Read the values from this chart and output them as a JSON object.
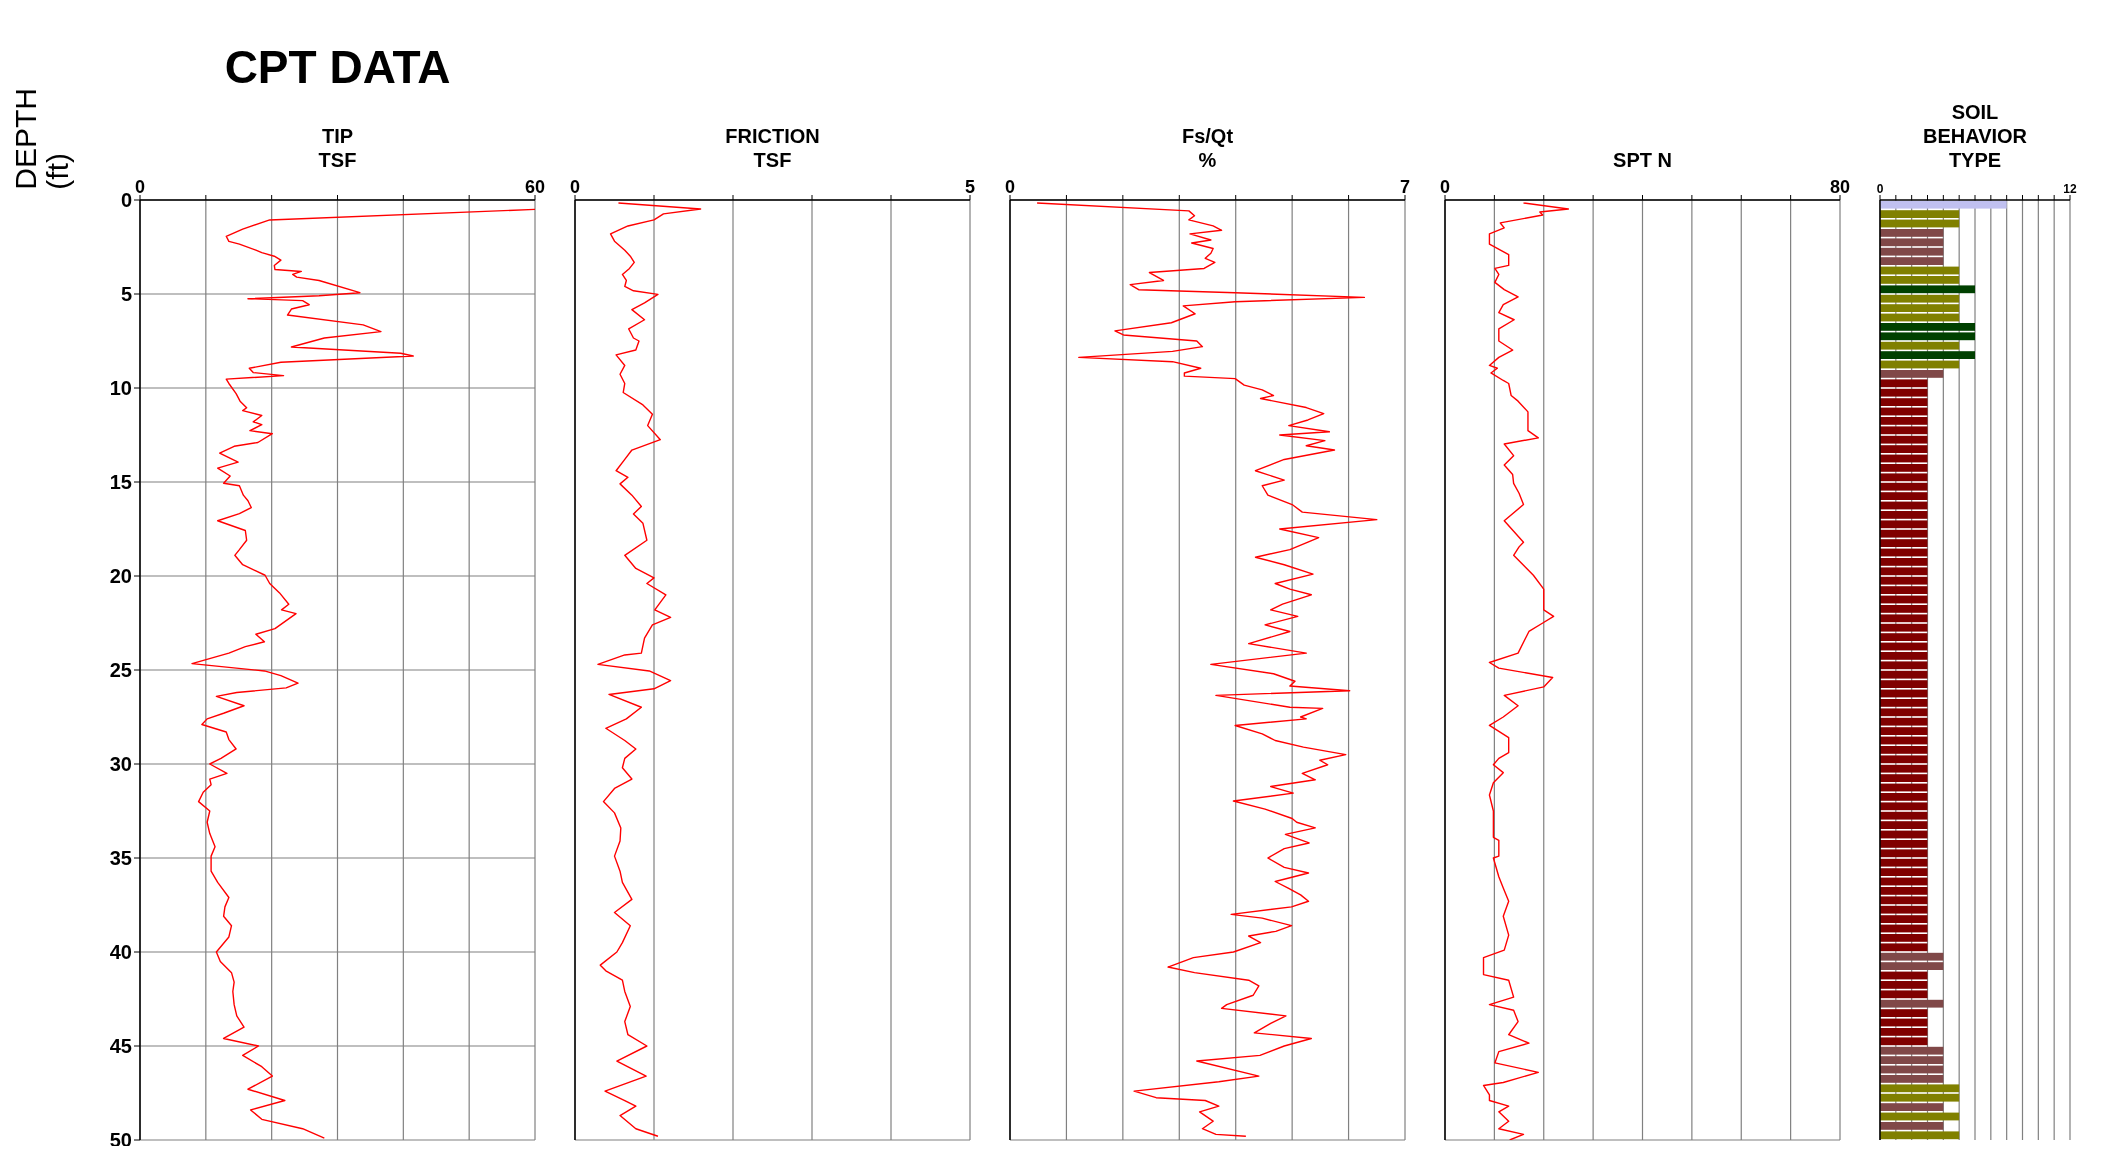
{
  "chart_data": [
    {
      "type": "line",
      "title": "CPT DATA",
      "xlabel": "TIP\nTSF",
      "ylabel": "DEPTH\n(ft)",
      "color": "#ff0000",
      "grid": true,
      "xlim": [
        0,
        60
      ],
      "xticks": [
        0,
        {
          "value": 10,
          "label": null
        },
        {
          "value": 20,
          "label": null
        },
        {
          "value": 30,
          "label": null
        },
        {
          "value": 40,
          "label": null
        },
        {
          "value": 50,
          "label": null
        },
        60
      ],
      "ylim": [
        50,
        0
      ],
      "yticks": [
        0,
        5,
        10,
        15,
        20,
        25,
        30,
        35,
        40,
        45,
        50
      ],
      "x": [
        60,
        19.7,
        15.6,
        13.1,
        13.5,
        15.1,
        17.6,
        18.5,
        20.4,
        21.4,
        20.4,
        20.5,
        24.5,
        23.2,
        23.8,
        27.2,
        33.4,
        27.2,
        16.4,
        24.7,
        25.7,
        23.0,
        22.4,
        33.9,
        36.6,
        28.0,
        23.0,
        39.6,
        41.5,
        21.4,
        16.6,
        17.2,
        21.8,
        13.1,
        13.5,
        14.6,
        15.2,
        16.2,
        15.6,
        18.5,
        17.2,
        18.5,
        16.7,
        20.1,
        17.9,
        14.3,
        12.1,
        14.9,
        11.8,
        13.7,
        12.7,
        15.1,
        15.7,
        16.4,
        16.9,
        15.1,
        11.8,
        16.0,
        16.2,
        15.1,
        14.4,
        15.6,
        19.0,
        19.7,
        21.2,
        22.6,
        21.5,
        23.7,
        20.5,
        17.6,
        18.9,
        16.0,
        13.5,
        7.9,
        18.9,
        21.4,
        24.0,
        22.2,
        14.7,
        11.6,
        15.8,
        12.7,
        10.2,
        9.4,
        13.1,
        13.5,
        14.6,
        12.3,
        10.6,
        13.2,
        10.6,
        10.8,
        9.6,
        8.9,
        10.6,
        10.2,
        10.6,
        11.4,
        10.8,
        10.8,
        11.8,
        13.5,
        12.9,
        12.7,
        13.9,
        13.5,
        11.6,
        12.2,
        13.9,
        14.3,
        14.1,
        14.3,
        14.7,
        15.8,
        12.7,
        18.0,
        15.6,
        18.5,
        20.1,
        16.4,
        22.0,
        16.8,
        18.5,
        24.7,
        28.0
      ],
      "values": [
        0.5,
        1.06,
        1.55,
        1.93,
        2.2,
        2.35,
        2.67,
        2.8,
        2.99,
        3.2,
        3.48,
        3.7,
        3.8,
        3.96,
        4.1,
        4.28,
        4.93,
        5.09,
        5.25,
        5.35,
        5.57,
        5.8,
        6.12,
        6.64,
        7.0,
        7.34,
        7.82,
        8.15,
        8.3,
        8.63,
        8.95,
        9.18,
        9.34,
        9.53,
        9.76,
        10.3,
        10.7,
        11.05,
        11.2,
        11.46,
        11.8,
        11.95,
        12.27,
        12.43,
        12.9,
        13.1,
        13.46,
        13.94,
        14.26,
        14.68,
        15.07,
        15.2,
        15.7,
        16.0,
        16.36,
        16.68,
        17.06,
        17.58,
        18.1,
        18.6,
        18.9,
        19.4,
        19.96,
        20.4,
        20.9,
        21.5,
        21.8,
        22.0,
        22.8,
        23.1,
        23.5,
        23.76,
        24.1,
        24.66,
        25.05,
        25.3,
        25.7,
        25.95,
        26.2,
        26.4,
        26.9,
        27.3,
        27.6,
        27.9,
        28.3,
        28.7,
        29.2,
        29.7,
        30.0,
        30.5,
        30.8,
        31.1,
        31.5,
        32.0,
        32.5,
        33.1,
        33.7,
        34.4,
        34.9,
        35.7,
        36.3,
        37.1,
        37.6,
        38.1,
        38.6,
        39.2,
        40.0,
        40.5,
        41.1,
        41.6,
        42.1,
        42.8,
        43.4,
        44.0,
        44.6,
        45.0,
        45.5,
        46.1,
        46.6,
        47.3,
        47.9,
        48.4,
        48.9,
        49.4,
        49.9
      ]
    },
    {
      "type": "line",
      "xlabel": "FRICTION\nTSF",
      "color": "#ff0000",
      "grid": true,
      "tick_labels": "x",
      "xlim": [
        0,
        5
      ],
      "xticks": [
        0,
        {
          "value": 1,
          "label": null
        },
        {
          "value": 2,
          "label": null
        },
        {
          "value": 3,
          "label": null
        },
        {
          "value": 4,
          "label": null
        },
        5
      ],
      "ylim": [
        50,
        0
      ],
      "yticks": [
        0,
        5,
        10,
        15,
        20,
        25,
        30,
        35,
        40,
        45,
        50
      ],
      "x": [
        0.55,
        1.59,
        1.12,
        1.0,
        0.67,
        0.45,
        0.5,
        0.63,
        0.7,
        0.75,
        0.69,
        0.6,
        0.65,
        0.63,
        0.74,
        1.05,
        0.88,
        0.72,
        0.88,
        0.68,
        0.74,
        0.81,
        0.77,
        0.52,
        0.63,
        0.57,
        0.63,
        0.61,
        0.86,
        0.98,
        0.92,
        1.08,
        0.72,
        0.63,
        0.52,
        0.67,
        0.57,
        0.72,
        0.84,
        0.74,
        0.86,
        0.91,
        0.63,
        0.77,
        1.0,
        0.91,
        1.15,
        1.01,
        1.21,
        0.98,
        0.88,
        0.84,
        0.63,
        0.29,
        0.94,
        1.21,
        1.0,
        0.43,
        0.84,
        0.65,
        0.39,
        0.63,
        0.77,
        0.63,
        0.6,
        0.72,
        0.5,
        0.36,
        0.5,
        0.58,
        0.57,
        0.5,
        0.57,
        0.6,
        0.72,
        0.5,
        0.7,
        0.6,
        0.53,
        0.32,
        0.39,
        0.6,
        0.63,
        0.7,
        0.63,
        0.67,
        0.91,
        0.53,
        0.9,
        0.38,
        0.63,
        0.77,
        0.57,
        0.77,
        1.05
      ],
      "values": [
        0.16,
        0.48,
        0.74,
        1.06,
        1.38,
        1.8,
        2.19,
        2.67,
        2.99,
        3.32,
        3.64,
        3.96,
        4.28,
        4.6,
        4.83,
        5.02,
        5.47,
        5.83,
        6.37,
        6.86,
        7.34,
        7.5,
        7.98,
        8.24,
        8.8,
        9.27,
        9.76,
        10.24,
        10.9,
        11.4,
        12.0,
        12.75,
        13.3,
        13.8,
        14.4,
        14.75,
        15.1,
        15.7,
        16.3,
        16.7,
        17.2,
        18.1,
        18.9,
        19.6,
        20.1,
        20.4,
        21.0,
        21.8,
        22.2,
        22.6,
        23.3,
        24.1,
        24.2,
        24.7,
        25.05,
        25.56,
        26.0,
        26.3,
        26.98,
        27.6,
        28.1,
        28.75,
        29.2,
        29.7,
        30.2,
        30.8,
        31.3,
        32.0,
        32.6,
        33.4,
        34.1,
        34.9,
        35.7,
        36.3,
        37.2,
        37.9,
        38.6,
        39.5,
        40.0,
        40.7,
        41.0,
        41.5,
        42.1,
        42.9,
        43.7,
        44.4,
        45.0,
        45.8,
        46.6,
        47.4,
        47.9,
        48.2,
        48.7,
        49.4,
        49.8
      ]
    },
    {
      "type": "line",
      "xlabel": "Fs/Qt\n%",
      "color": "#ff0000",
      "grid": true,
      "tick_labels": "x",
      "xlim": [
        0,
        7
      ],
      "xticks": [
        0,
        {
          "value": 1,
          "label": null
        },
        {
          "value": 2,
          "label": null
        },
        {
          "value": 3,
          "label": null
        },
        {
          "value": 4,
          "label": null
        },
        {
          "value": 5,
          "label": null
        },
        {
          "value": 6,
          "label": null
        },
        7
      ],
      "ylim": [
        50,
        0
      ],
      "yticks": [
        0,
        5,
        10,
        15,
        20,
        25,
        30,
        35,
        40,
        45,
        50
      ],
      "x": [
        0.48,
        3.17,
        3.27,
        3.17,
        3.6,
        3.75,
        3.19,
        3.56,
        3.22,
        3.6,
        3.56,
        3.46,
        3.63,
        3.44,
        2.47,
        2.72,
        2.13,
        2.28,
        3.99,
        6.28,
        3.99,
        3.07,
        3.28,
        2.86,
        1.86,
        2.01,
        3.31,
        3.41,
        2.88,
        1.22,
        2.88,
        3.38,
        3.09,
        3.09,
        3.99,
        4.15,
        4.47,
        4.67,
        4.44,
        5.25,
        5.56,
        5.28,
        4.94,
        5.66,
        4.78,
        5.58,
        5.25,
        5.75,
        4.86,
        4.35,
        4.86,
        4.47,
        4.57,
        5.0,
        5.18,
        6.5,
        4.78,
        5.47,
        5.28,
        4.96,
        4.35,
        4.86,
        5.37,
        4.7,
        4.96,
        5.34,
        4.83,
        4.62,
        5.1,
        4.52,
        4.96,
        4.23,
        5.25,
        3.56,
        4.67,
        5.05,
        4.96,
        6.02,
        3.65,
        4.96,
        5.54,
        5.15,
        5.25,
        3.99,
        4.47,
        4.7,
        5.2,
        5.95,
        5.49,
        5.63,
        5.18,
        5.41,
        4.62,
        5.02,
        3.96,
        4.52,
        5.0,
        5.08,
        5.41,
        4.88,
        5.3,
        4.86,
        4.57,
        4.86,
        5.29,
        4.7,
        4.93,
        5.15,
        5.29,
        4.99,
        3.92,
        4.47,
        4.99,
        4.71,
        4.23,
        4.44,
        3.96,
        3.25,
        2.8,
        3.27,
        4.23,
        4.41,
        4.31,
        3.84,
        3.75,
        4.89,
        4.62,
        4.33,
        5.34,
        4.86,
        4.43,
        3.31,
        4.41,
        3.7,
        2.2,
        2.59,
        3.46,
        3.7,
        3.36,
        3.6,
        3.41,
        3.65,
        4.18
      ],
      "values": [
        0.16,
        0.58,
        0.84,
        1.06,
        1.38,
        1.61,
        1.8,
        2.13,
        2.29,
        2.58,
        2.83,
        3.1,
        3.32,
        3.64,
        3.86,
        4.28,
        4.5,
        4.77,
        4.93,
        5.18,
        5.41,
        5.63,
        6.05,
        6.53,
        6.96,
        7.18,
        7.5,
        7.8,
        8.05,
        8.37,
        8.6,
        8.95,
        9.2,
        9.37,
        9.5,
        9.85,
        10.1,
        10.4,
        10.56,
        11.04,
        11.36,
        11.7,
        12.0,
        12.33,
        12.5,
        12.8,
        13.07,
        13.3,
        13.8,
        14.4,
        14.9,
        15.2,
        15.7,
        16.2,
        16.6,
        17.0,
        17.5,
        17.96,
        18.2,
        18.6,
        19.0,
        19.4,
        19.9,
        20.4,
        20.7,
        21.0,
        21.5,
        21.8,
        22.15,
        22.6,
        22.95,
        23.6,
        24.1,
        24.7,
        25.2,
        25.6,
        25.85,
        26.1,
        26.35,
        26.98,
        27.04,
        27.5,
        27.6,
        27.95,
        28.4,
        28.75,
        29.1,
        29.5,
        29.8,
        30.04,
        30.5,
        30.84,
        31.2,
        31.55,
        31.97,
        32.4,
        32.9,
        33.1,
        33.4,
        33.74,
        34.2,
        34.5,
        35.0,
        35.5,
        35.8,
        36.25,
        36.6,
        36.96,
        37.3,
        37.6,
        38.0,
        38.2,
        38.6,
        38.9,
        39.15,
        39.5,
        40.0,
        40.3,
        40.8,
        41.1,
        41.5,
        41.8,
        42.3,
        42.8,
        43.0,
        43.4,
        43.8,
        44.3,
        44.6,
        45.0,
        45.5,
        45.8,
        46.6,
        46.9,
        47.4,
        47.75,
        47.9,
        48.2,
        48.5,
        49.0,
        49.4,
        49.7,
        49.8
      ]
    },
    {
      "type": "line",
      "xlabel": "SPT N",
      "color": "#ff0000",
      "grid": true,
      "tick_labels": "x",
      "xlim": [
        0,
        80
      ],
      "xticks": [
        0,
        {
          "value": 10,
          "label": null
        },
        {
          "value": 20,
          "label": null
        },
        {
          "value": 30,
          "label": null
        },
        {
          "value": 40,
          "label": null
        },
        {
          "value": 50,
          "label": null
        },
        {
          "value": 60,
          "label": null
        },
        {
          "value": 70,
          "label": null
        },
        80
      ],
      "ylim": [
        50,
        0
      ],
      "yticks": [
        0,
        5,
        10,
        15,
        20,
        25,
        30,
        35,
        40,
        45,
        50
      ],
      "x": [
        15.9,
        25.0,
        19.2,
        19.8,
        11.2,
        12.0,
        9.0,
        9.0,
        12.9,
        12.9,
        10.1,
        10.9,
        10.1,
        12.0,
        14.8,
        11.8,
        10.9,
        14.0,
        10.9,
        10.9,
        13.7,
        10.9,
        9.0,
        10.6,
        9.3,
        11.8,
        12.9,
        13.4,
        14.8,
        16.8,
        16.8,
        18.9,
        12.0,
        13.9,
        12.0,
        13.7,
        13.9,
        15.0,
        15.9,
        12.0,
        15.9,
        15.0,
        13.9,
        17.9,
        20.0,
        20.0,
        22.0,
        19.8,
        17.0,
        14.8,
        9.0,
        10.9,
        21.8,
        20.0,
        12.0,
        14.8,
        11.8,
        9.0,
        12.9,
        12.9,
        10.9,
        9.8,
        11.8,
        9.8,
        9.0,
        9.8,
        9.8,
        10.9,
        10.9,
        9.8,
        10.9,
        11.8,
        12.9,
        11.8,
        12.9,
        12.0,
        7.8,
        7.8,
        12.9,
        13.9,
        9.0,
        13.9,
        14.8,
        12.9,
        17.0,
        10.9,
        10.1,
        18.9,
        11.8,
        7.8,
        9.0,
        9.0,
        12.9,
        10.9,
        12.9,
        10.9,
        15.9,
        13.1
      ],
      "values": [
        0.16,
        0.48,
        0.64,
        0.8,
        1.22,
        1.48,
        1.8,
        2.35,
        2.9,
        3.48,
        3.64,
        3.96,
        4.38,
        4.77,
        5.15,
        5.57,
        5.99,
        6.37,
        6.86,
        7.5,
        7.98,
        8.37,
        8.8,
        8.95,
        9.2,
        9.6,
        9.76,
        10.4,
        10.7,
        11.27,
        12.27,
        12.65,
        12.98,
        13.6,
        14.1,
        14.6,
        15.07,
        15.6,
        16.2,
        17.06,
        18.2,
        18.45,
        18.9,
        19.96,
        20.7,
        21.8,
        22.15,
        22.5,
        22.95,
        24.1,
        24.6,
        24.9,
        25.4,
        25.9,
        26.35,
        26.9,
        27.5,
        27.95,
        28.6,
        29.4,
        29.7,
        30.04,
        30.46,
        31.0,
        31.65,
        32.5,
        33.9,
        34.06,
        34.9,
        35.0,
        36.0,
        36.6,
        37.3,
        38.1,
        39.1,
        39.9,
        40.3,
        41.2,
        41.5,
        42.4,
        42.8,
        43.1,
        43.7,
        44.4,
        44.85,
        45.3,
        45.9,
        46.4,
        46.94,
        47.1,
        47.6,
        47.9,
        48.2,
        48.5,
        49.0,
        49.4,
        49.7,
        50.0
      ]
    },
    {
      "type": "bar",
      "orientation": "horizontal",
      "xlabel": "SOIL\nBEHAVIOR\nTYPE",
      "grid": "x",
      "tick_labels": "x",
      "xlim": [
        0,
        12
      ],
      "xticks": [
        0,
        {
          "value": 1,
          "label": null
        },
        {
          "value": 2,
          "label": null
        },
        {
          "value": 3,
          "label": null
        },
        {
          "value": 4,
          "label": null
        },
        {
          "value": 5,
          "label": null
        },
        {
          "value": 6,
          "label": null
        },
        {
          "value": 7,
          "label": null
        },
        {
          "value": 8,
          "label": null
        },
        {
          "value": 9,
          "label": null
        },
        {
          "value": 10,
          "label": null
        },
        {
          "value": 11,
          "label": null
        },
        12
      ],
      "ylim": [
        50,
        0
      ],
      "yticks": [
        0,
        5,
        10,
        15,
        20,
        25,
        30,
        35,
        40,
        45,
        50
      ],
      "x": [
        0.25,
        0.75,
        1.25,
        1.75,
        2.25,
        2.75,
        3.25,
        3.75,
        4.25,
        4.75,
        5.25,
        5.75,
        6.25,
        6.75,
        7.25,
        7.75,
        8.25,
        8.75,
        9.25,
        9.75,
        10.25,
        10.75,
        11.25,
        11.75,
        12.25,
        12.75,
        13.25,
        13.75,
        14.25,
        14.75,
        15.25,
        15.75,
        16.25,
        16.75,
        17.25,
        17.75,
        18.25,
        18.75,
        19.25,
        19.75,
        20.25,
        20.75,
        21.25,
        21.75,
        22.25,
        22.75,
        23.25,
        23.75,
        24.25,
        24.75,
        25.25,
        25.75,
        26.25,
        26.75,
        27.25,
        27.75,
        28.25,
        28.75,
        29.25,
        29.75,
        30.25,
        30.75,
        31.25,
        31.75,
        32.25,
        32.75,
        33.25,
        33.75,
        34.25,
        34.75,
        35.25,
        35.75,
        36.25,
        36.75,
        37.25,
        37.75,
        38.25,
        38.75,
        39.25,
        39.75,
        40.25,
        40.75,
        41.25,
        41.75,
        42.25,
        42.75,
        43.25,
        43.75,
        44.25,
        44.75,
        45.25,
        45.75,
        46.25,
        46.75,
        47.25,
        47.75,
        48.25,
        48.75,
        49.25,
        49.75
      ],
      "values": [
        8,
        5,
        5,
        4,
        4,
        4,
        4,
        5,
        5,
        6,
        5,
        5,
        5,
        6,
        6,
        5,
        6,
        5,
        4,
        3,
        3,
        3,
        3,
        3,
        3,
        3,
        3,
        3,
        3,
        3,
        3,
        3,
        3,
        3,
        3,
        3,
        3,
        3,
        3,
        3,
        3,
        3,
        3,
        3,
        3,
        3,
        3,
        3,
        3,
        3,
        3,
        3,
        3,
        3,
        3,
        3,
        3,
        3,
        3,
        3,
        3,
        3,
        3,
        3,
        3,
        3,
        3,
        3,
        3,
        3,
        3,
        3,
        3,
        3,
        3,
        3,
        3,
        3,
        3,
        3,
        4,
        4,
        3,
        3,
        3,
        4,
        3,
        3,
        3,
        3,
        4,
        4,
        4,
        4,
        5,
        5,
        4,
        5,
        4,
        5
      ],
      "colors": [
        "#c0c0f0",
        "#808000",
        "#808000",
        "#804848",
        "#804848",
        "#804848",
        "#804848",
        "#808000",
        "#808000",
        "#004000",
        "#808000",
        "#808000",
        "#808000",
        "#004000",
        "#004000",
        "#808000",
        "#004000",
        "#808000",
        "#804848",
        "#800000",
        "#800000",
        "#800000",
        "#800000",
        "#800000",
        "#800000",
        "#800000",
        "#800000",
        "#800000",
        "#800000",
        "#800000",
        "#800000",
        "#800000",
        "#800000",
        "#800000",
        "#800000",
        "#800000",
        "#800000",
        "#800000",
        "#800000",
        "#800000",
        "#800000",
        "#800000",
        "#800000",
        "#800000",
        "#800000",
        "#800000",
        "#800000",
        "#800000",
        "#800000",
        "#800000",
        "#800000",
        "#800000",
        "#800000",
        "#800000",
        "#800000",
        "#800000",
        "#800000",
        "#800000",
        "#800000",
        "#800000",
        "#800000",
        "#800000",
        "#800000",
        "#800000",
        "#800000",
        "#800000",
        "#800000",
        "#800000",
        "#800000",
        "#800000",
        "#800000",
        "#800000",
        "#800000",
        "#800000",
        "#800000",
        "#800000",
        "#800000",
        "#800000",
        "#800000",
        "#800000",
        "#804848",
        "#804848",
        "#800000",
        "#800000",
        "#800000",
        "#804848",
        "#800000",
        "#800000",
        "#800000",
        "#800000",
        "#804848",
        "#804848",
        "#804848",
        "#804848",
        "#808000",
        "#808000",
        "#804848",
        "#808000",
        "#804848",
        "#808000"
      ]
    }
  ]
}
